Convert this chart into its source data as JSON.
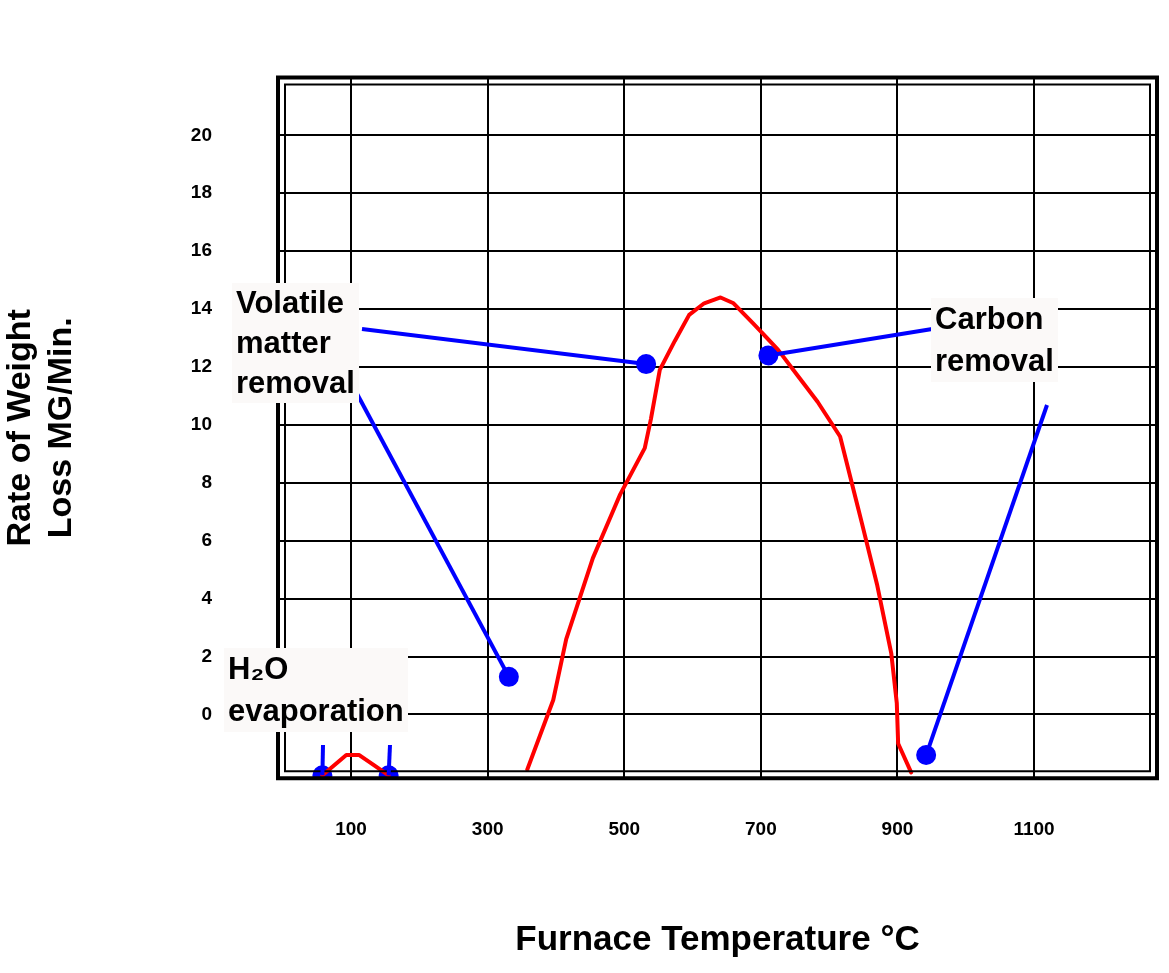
{
  "chart_data": {
    "type": "line",
    "xlabel": "Furnace Temperature °C",
    "ylabel": "Rate of Weight Loss MG/Min.",
    "xlim": [
      -7,
      1280
    ],
    "xticks": [
      100,
      300,
      500,
      700,
      900,
      1100
    ],
    "ylim": [
      -2.2,
      22
    ],
    "yticks": [
      0,
      2,
      4,
      6,
      8,
      10,
      12,
      14,
      16,
      18,
      20
    ],
    "grid": true,
    "legend": false,
    "marker": "none",
    "line_style": "solid",
    "series": [
      {
        "type": "line",
        "color": "#ff0000",
        "x": [
          58,
          93,
          112,
          155
        ],
        "values": [
          -2.1,
          -1.4,
          -1.4,
          -2.1
        ]
      },
      {
        "type": "line",
        "color": "#ff0000",
        "x": [
          358,
          396,
          415,
          454,
          494,
          530,
          539,
          552,
          574,
          595,
          617,
          641,
          660,
          689,
          725,
          754,
          783,
          816,
          848,
          870,
          891,
          899,
          901,
          920
        ],
        "values": [
          -1.9,
          0.5,
          2.6,
          5.4,
          7.6,
          9.2,
          10.2,
          11.9,
          12.9,
          13.8,
          14.2,
          14.4,
          14.2,
          13.5,
          12.6,
          11.7,
          10.8,
          9.6,
          6.6,
          4.5,
          2.1,
          0.4,
          -1.0,
          -2.0
        ]
      },
      {
        "type": "scatter",
        "color": "#0000ff",
        "marker": "circle",
        "x": [
          58,
          155,
          331,
          532,
          711,
          942
        ],
        "values": [
          -2.1,
          -2.1,
          1.3,
          12.1,
          12.4,
          -1.4
        ]
      }
    ],
    "annotations": [
      {
        "text": "Volatile matter removal",
        "x": 532,
        "y": 12.1
      },
      {
        "text": "Carbon removal",
        "x": 711,
        "y": 12.4
      },
      {
        "text": "H₂O evaporation",
        "x": 58,
        "y": -2.1
      }
    ]
  }
}
